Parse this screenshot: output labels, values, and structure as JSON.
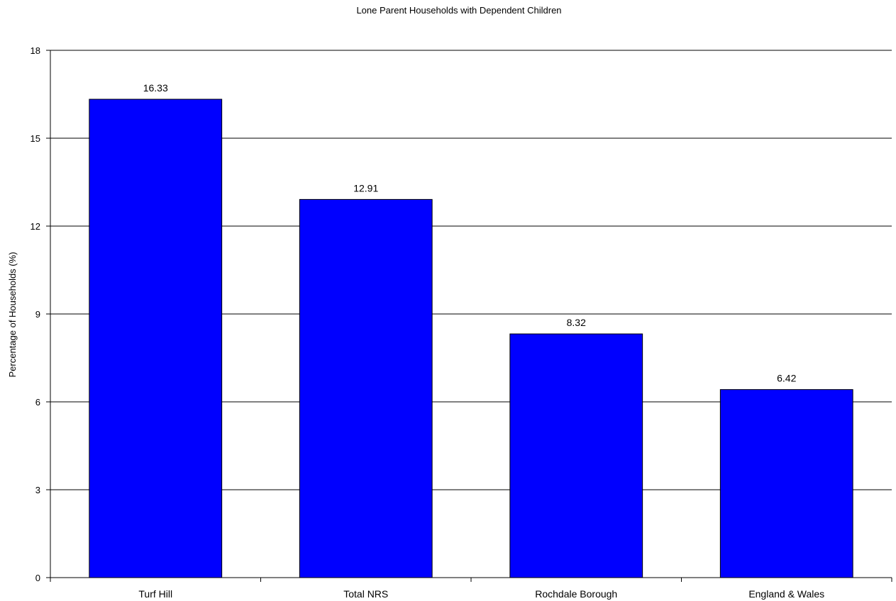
{
  "chart_data": {
    "type": "bar",
    "title": "Lone Parent Households with Dependent Children",
    "xlabel": "",
    "ylabel": "Percentage of Households (%)",
    "categories": [
      "Turf Hill",
      "Total NRS",
      "Rochdale Borough",
      "England & Wales"
    ],
    "values": [
      16.33,
      12.91,
      8.32,
      6.42
    ],
    "data_labels": [
      "16.33",
      "12.91",
      "8.32",
      "6.42"
    ],
    "ylim": [
      0,
      18
    ],
    "yticks": [
      0,
      3,
      6,
      9,
      12,
      15,
      18
    ],
    "grid": true,
    "legend": "none",
    "bar_color": "#0000ff"
  }
}
